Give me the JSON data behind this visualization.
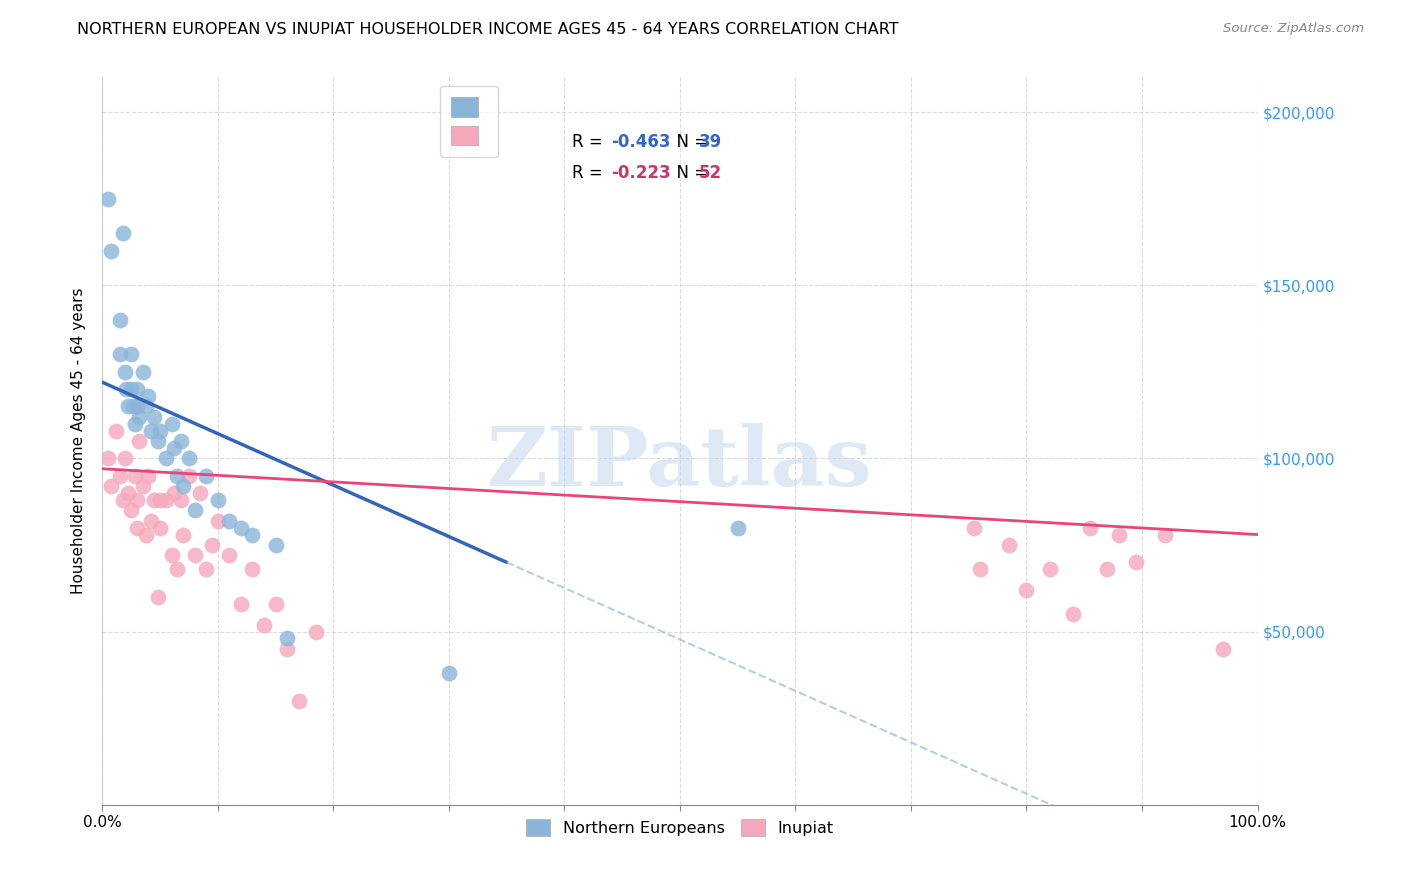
{
  "title": "NORTHERN EUROPEAN VS INUPIAT HOUSEHOLDER INCOME AGES 45 - 64 YEARS CORRELATION CHART",
  "source": "Source: ZipAtlas.com",
  "ylabel": "Householder Income Ages 45 - 64 years",
  "xmin": 0.0,
  "xmax": 1.0,
  "ymin": 0,
  "ymax": 210000,
  "xticks": [
    0.0,
    0.1,
    0.2,
    0.3,
    0.4,
    0.5,
    0.6,
    0.7,
    0.8,
    0.9,
    1.0
  ],
  "xticklabels": [
    "0.0%",
    "",
    "",
    "",
    "",
    "",
    "",
    "",
    "",
    "",
    "100.0%"
  ],
  "yticks": [
    0,
    50000,
    100000,
    150000,
    200000
  ],
  "right_yticklabels": [
    "",
    "$50,000",
    "$100,000",
    "$150,000",
    "$200,000"
  ],
  "blue_R": "-0.463",
  "blue_N": "39",
  "pink_R": "-0.223",
  "pink_N": "52",
  "blue_color": "#8ab4d8",
  "pink_color": "#f5a8bc",
  "blue_line_color": "#3366bb",
  "pink_line_color": "#e8457a",
  "watermark": "ZIPatlas",
  "blue_line_x0": 0.0,
  "blue_line_y0": 122000,
  "blue_line_x1": 0.35,
  "blue_line_y1": 70000,
  "pink_line_x0": 0.0,
  "pink_line_y0": 97000,
  "pink_line_x1": 1.0,
  "pink_line_y1": 78000,
  "blue_scatter_x": [
    0.005,
    0.008,
    0.015,
    0.015,
    0.018,
    0.02,
    0.021,
    0.022,
    0.025,
    0.025,
    0.027,
    0.028,
    0.03,
    0.03,
    0.032,
    0.035,
    0.038,
    0.04,
    0.042,
    0.045,
    0.048,
    0.05,
    0.055,
    0.06,
    0.062,
    0.065,
    0.068,
    0.07,
    0.075,
    0.08,
    0.09,
    0.1,
    0.11,
    0.12,
    0.13,
    0.15,
    0.16,
    0.3,
    0.55
  ],
  "blue_scatter_y": [
    175000,
    160000,
    140000,
    130000,
    165000,
    125000,
    120000,
    115000,
    130000,
    120000,
    115000,
    110000,
    120000,
    115000,
    112000,
    125000,
    115000,
    118000,
    108000,
    112000,
    105000,
    108000,
    100000,
    110000,
    103000,
    95000,
    105000,
    92000,
    100000,
    85000,
    95000,
    88000,
    82000,
    80000,
    78000,
    75000,
    48000,
    38000,
    80000
  ],
  "pink_scatter_x": [
    0.005,
    0.008,
    0.012,
    0.015,
    0.018,
    0.02,
    0.022,
    0.025,
    0.028,
    0.03,
    0.03,
    0.032,
    0.035,
    0.038,
    0.04,
    0.042,
    0.045,
    0.048,
    0.05,
    0.05,
    0.055,
    0.06,
    0.062,
    0.065,
    0.068,
    0.07,
    0.075,
    0.08,
    0.085,
    0.09,
    0.095,
    0.1,
    0.11,
    0.12,
    0.13,
    0.14,
    0.15,
    0.16,
    0.17,
    0.185,
    0.755,
    0.76,
    0.785,
    0.8,
    0.82,
    0.84,
    0.855,
    0.87,
    0.88,
    0.895,
    0.92,
    0.97
  ],
  "pink_scatter_y": [
    100000,
    92000,
    108000,
    95000,
    88000,
    100000,
    90000,
    85000,
    95000,
    88000,
    80000,
    105000,
    92000,
    78000,
    95000,
    82000,
    88000,
    60000,
    88000,
    80000,
    88000,
    72000,
    90000,
    68000,
    88000,
    78000,
    95000,
    72000,
    90000,
    68000,
    75000,
    82000,
    72000,
    58000,
    68000,
    52000,
    58000,
    45000,
    30000,
    50000,
    80000,
    68000,
    75000,
    62000,
    68000,
    55000,
    80000,
    68000,
    78000,
    70000,
    78000,
    45000
  ],
  "legend_blue_label": "R = -0.463   N = 39",
  "legend_pink_label": "R = -0.223   N = 52",
  "legend_ne": "Northern Europeans",
  "legend_in": "Inupiat"
}
